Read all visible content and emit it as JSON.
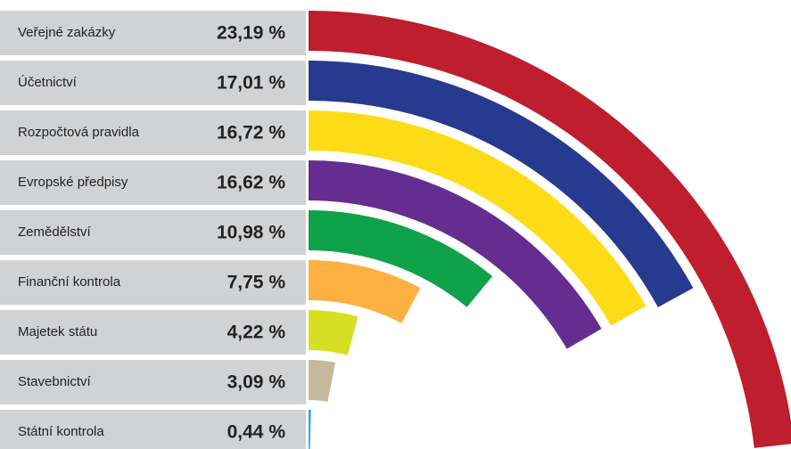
{
  "chart_data": {
    "type": "radialbar",
    "categories": [
      "Veřejné zakázky",
      "Účetnictví",
      "Rozpočtová pravidla",
      "Evropské předpisy",
      "Zemědělství",
      "Finanční kontrola",
      "Majetek státu",
      "Stavebnictví",
      "Státní kontrola"
    ],
    "values": [
      23.19,
      17.01,
      16.72,
      16.62,
      10.98,
      7.75,
      4.22,
      3.09,
      0.44
    ],
    "value_labels": [
      "23,19 %",
      "17,01 %",
      "16,72 %",
      "16,62 %",
      "10,98 %",
      "7,75 %",
      "4,22 %",
      "3,09 %",
      "0,44 %"
    ],
    "colors": [
      "#be1e2d",
      "#263a8f",
      "#fddc17",
      "#662d91",
      "#0fa24a",
      "#fbb040",
      "#d7df23",
      "#c8b89a",
      "#27aae1"
    ]
  }
}
